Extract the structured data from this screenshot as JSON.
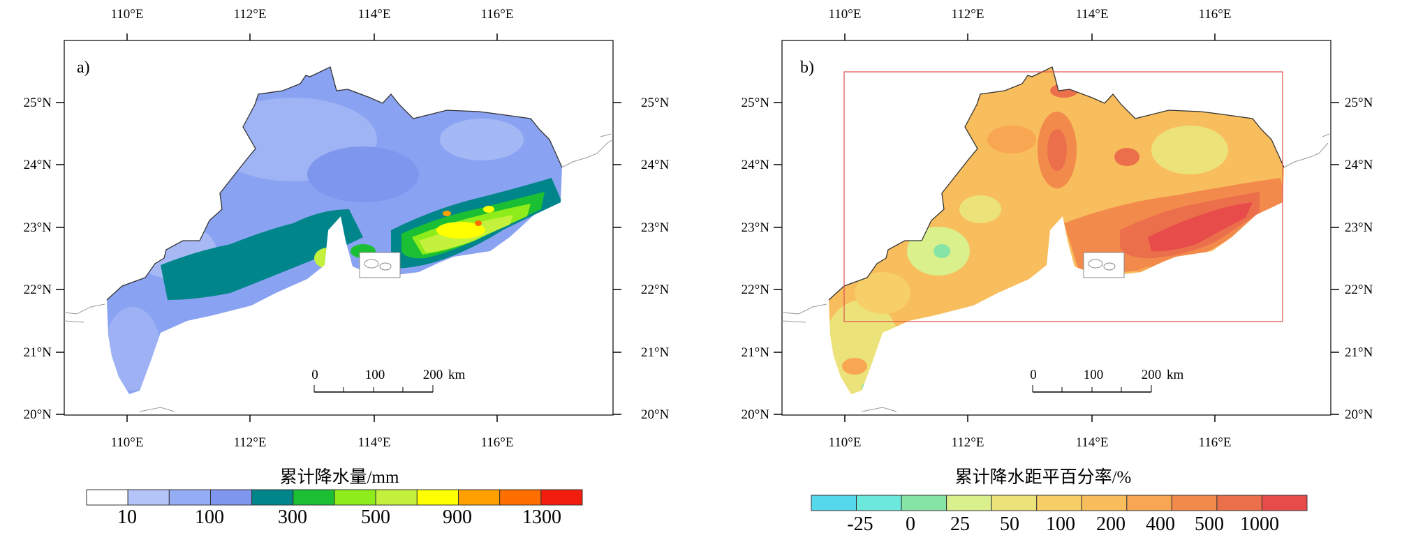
{
  "axes": {
    "lon_labels": [
      "110°E",
      "112°E",
      "114°E",
      "116°E"
    ],
    "lat_labels": [
      "25°N",
      "24°N",
      "23°N",
      "22°N",
      "21°N",
      "20°N"
    ]
  },
  "panel_a": {
    "label": "a)",
    "colorbar_title": "累计降水量/mm",
    "colorbar_labels": [
      "10",
      "100",
      "300",
      "500",
      "900",
      "1300"
    ],
    "colorbar_colors": [
      "#ffffff",
      "#b4c4f8",
      "#94acf4",
      "#7f96ef",
      "#00868a",
      "#1bbf34",
      "#8eec1a",
      "#c4f23c",
      "#ffff00",
      "#ff9f00",
      "#ff6f00",
      "#f31d0d"
    ],
    "scalebar": {
      "labels": [
        "0",
        "100",
        "200"
      ],
      "unit": "km"
    }
  },
  "panel_b": {
    "label": "b)",
    "colorbar_title": "累计降水距平百分率/%",
    "colorbar_labels": [
      "-25",
      "0",
      "25",
      "50",
      "100",
      "200",
      "400",
      "500",
      "1000"
    ],
    "colorbar_colors": [
      "#55d8ec",
      "#6ce8dc",
      "#86e4a6",
      "#d9f08c",
      "#ece27a",
      "#f6cf68",
      "#f8bd5c",
      "#f8a652",
      "#f28a4c",
      "#ec6f4c",
      "#e84c4a"
    ],
    "scalebar": {
      "labels": [
        "0",
        "100",
        "200"
      ],
      "unit": "km"
    },
    "highlight_box_color": "#e05050"
  }
}
